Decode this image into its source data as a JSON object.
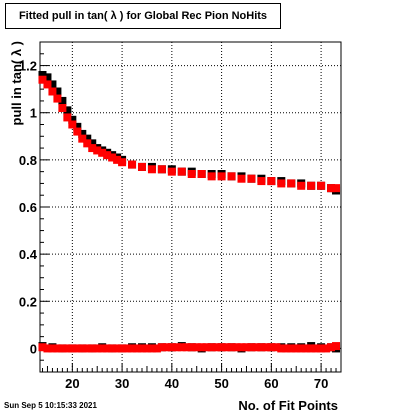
{
  "chart_data": {
    "type": "scatter",
    "title": "Fitted pull in tan( λ ) for Global Rec Pion NoHits",
    "xlabel": "No. of Fit Points",
    "ylabel": "pull in tan( λ )",
    "xlim": [
      13.5,
      74
    ],
    "ylim": [
      -0.1,
      1.3
    ],
    "xticks": [
      20,
      30,
      40,
      50,
      60,
      70
    ],
    "yticks": [
      0,
      0.2,
      0.4,
      0.6,
      0.8,
      1.0,
      1.2
    ],
    "xtick_labels": [
      "20",
      "30",
      "40",
      "50",
      "60",
      "70"
    ],
    "ytick_labels": [
      "0",
      "0.2",
      "0.4",
      "0.6",
      "0.8",
      "1",
      "1.2"
    ],
    "grid": true,
    "series": [
      {
        "color": "#000000",
        "marker": "square",
        "x": [
          14,
          15,
          16,
          17,
          18,
          19,
          20,
          21,
          22,
          23,
          24,
          25,
          26,
          27,
          28,
          29,
          30,
          32,
          34,
          36,
          38,
          40,
          42,
          44,
          46,
          48,
          50,
          52,
          54,
          56,
          58,
          60,
          62,
          64,
          66,
          68,
          70,
          72,
          73
        ],
        "y": [
          1.16,
          1.15,
          1.12,
          1.09,
          1.05,
          1.01,
          0.97,
          0.94,
          0.91,
          0.89,
          0.87,
          0.85,
          0.84,
          0.83,
          0.82,
          0.81,
          0.8,
          0.78,
          0.77,
          0.77,
          0.76,
          0.76,
          0.75,
          0.75,
          0.74,
          0.74,
          0.74,
          0.73,
          0.73,
          0.72,
          0.72,
          0.71,
          0.71,
          0.7,
          0.7,
          0.69,
          0.69,
          0.68,
          0.67
        ]
      },
      {
        "color": "#ff0000",
        "marker": "square",
        "x": [
          14,
          15,
          16,
          17,
          18,
          19,
          20,
          21,
          22,
          23,
          24,
          25,
          26,
          27,
          28,
          29,
          30,
          32,
          34,
          36,
          38,
          40,
          42,
          44,
          46,
          48,
          50,
          52,
          54,
          56,
          58,
          60,
          62,
          64,
          66,
          68,
          70,
          72,
          73
        ],
        "y": [
          1.14,
          1.12,
          1.09,
          1.06,
          1.02,
          0.98,
          0.95,
          0.92,
          0.89,
          0.87,
          0.85,
          0.84,
          0.83,
          0.82,
          0.81,
          0.8,
          0.79,
          0.78,
          0.77,
          0.76,
          0.76,
          0.75,
          0.75,
          0.74,
          0.74,
          0.73,
          0.73,
          0.73,
          0.72,
          0.72,
          0.71,
          0.71,
          0.7,
          0.7,
          0.69,
          0.69,
          0.69,
          0.68,
          0.68
        ]
      },
      {
        "color": "#000000",
        "marker": "square",
        "x": [
          14,
          16,
          18,
          20,
          22,
          24,
          26,
          28,
          30,
          32,
          34,
          36,
          38,
          40,
          42,
          44,
          46,
          48,
          50,
          52,
          54,
          56,
          58,
          60,
          62,
          64,
          66,
          68,
          70,
          72,
          73
        ],
        "y": [
          0.01,
          0.005,
          0.0,
          0.0,
          0.0,
          0.0,
          0.005,
          0.0,
          0.0,
          0.005,
          0.005,
          0.005,
          0.005,
          0.005,
          0.01,
          0.005,
          0.0,
          0.005,
          0.005,
          0.005,
          0.0,
          0.005,
          0.005,
          0.005,
          0.005,
          0.005,
          0.005,
          0.01,
          0.005,
          0.005,
          0.0
        ]
      },
      {
        "color": "#ff0000",
        "marker": "square",
        "x": [
          14,
          15,
          16,
          17,
          18,
          19,
          20,
          21,
          22,
          23,
          24,
          25,
          26,
          27,
          28,
          29,
          30,
          31,
          32,
          33,
          34,
          35,
          36,
          37,
          38,
          39,
          40,
          41,
          42,
          43,
          44,
          45,
          46,
          47,
          48,
          49,
          50,
          51,
          52,
          53,
          54,
          55,
          56,
          57,
          58,
          59,
          60,
          61,
          62,
          63,
          64,
          65,
          66,
          67,
          68,
          69,
          70,
          71,
          72,
          73
        ],
        "y": [
          0.005,
          0.0,
          0.0,
          0.0,
          0.0,
          0.0,
          0.0,
          0.0,
          0.0,
          0.0,
          0.0,
          0.0,
          0.0,
          0.0,
          0.0,
          0.0,
          0.0,
          0.0,
          0.0,
          0.0,
          0.0,
          0.0,
          0.0,
          0.0,
          0.005,
          0.005,
          0.005,
          0.005,
          0.005,
          0.005,
          0.005,
          0.005,
          0.005,
          0.005,
          0.005,
          0.005,
          0.005,
          0.005,
          0.005,
          0.005,
          0.005,
          0.005,
          0.005,
          0.005,
          0.005,
          0.005,
          0.005,
          0.005,
          0.0,
          0.0,
          0.0,
          0.0,
          0.0,
          0.0,
          0.0,
          0.0,
          0.0,
          0.0,
          0.005,
          0.01
        ]
      }
    ]
  },
  "footer": {
    "timestamp": "Sun Sep  5 10:15:33 2021"
  }
}
